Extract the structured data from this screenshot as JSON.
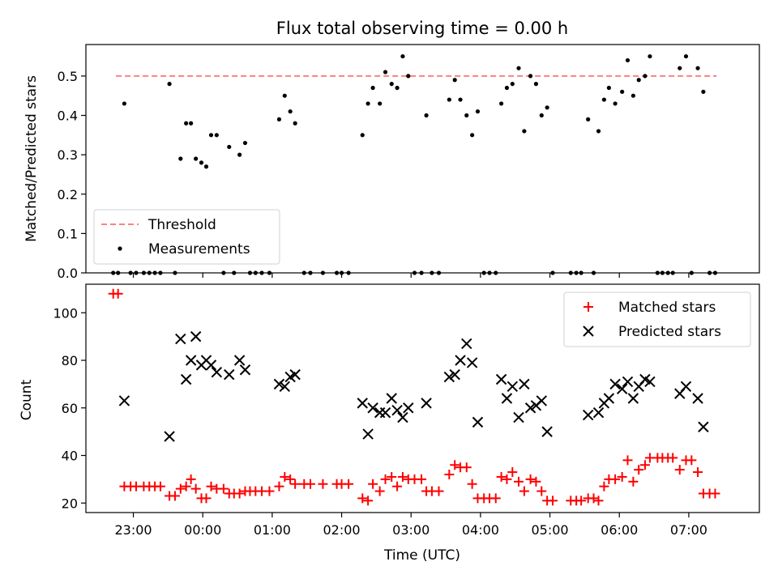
{
  "chart_data": [
    {
      "type": "scatter",
      "title": "Flux total observing time = 0.00 h",
      "xlabel": "",
      "ylabel": "Matched/Predicted stars",
      "xlim": [
        "22:19",
        "08:01"
      ],
      "ylim": [
        0,
        0.58
      ],
      "yticks": [
        0.0,
        0.1,
        0.2,
        0.3,
        0.4,
        0.5
      ],
      "ytick_labels": [
        "0.0",
        "0.1",
        "0.2",
        "0.3",
        "0.4",
        "0.5"
      ],
      "x_unit": "hours after 22:00 UTC",
      "grid": false,
      "legend_position": "lower-left",
      "threshold": {
        "name": "Threshold",
        "value": 0.5,
        "x_start": 0.75,
        "x_end": 9.4,
        "color": "#ff7f7f",
        "style": "dashed"
      },
      "series": [
        {
          "name": "Measurements",
          "color": "#000000",
          "marker": "dot",
          "points": [
            [
              0.71,
              0
            ],
            [
              0.78,
              0
            ],
            [
              0.87,
              0.43
            ],
            [
              0.96,
              0
            ],
            [
              1.04,
              0
            ],
            [
              1.15,
              0
            ],
            [
              1.23,
              0
            ],
            [
              1.31,
              0
            ],
            [
              1.39,
              0
            ],
            [
              1.52,
              0.48
            ],
            [
              1.6,
              0
            ],
            [
              1.68,
              0.29
            ],
            [
              1.76,
              0.38
            ],
            [
              1.83,
              0.38
            ],
            [
              1.9,
              0.29
            ],
            [
              1.98,
              0.28
            ],
            [
              2.05,
              0.27
            ],
            [
              2.12,
              0.35
            ],
            [
              2.2,
              0.35
            ],
            [
              2.3,
              0
            ],
            [
              2.38,
              0.32
            ],
            [
              2.45,
              0
            ],
            [
              2.53,
              0.3
            ],
            [
              2.61,
              0.33
            ],
            [
              2.68,
              0
            ],
            [
              2.76,
              0
            ],
            [
              2.85,
              0
            ],
            [
              2.96,
              0
            ],
            [
              3.1,
              0.39
            ],
            [
              3.18,
              0.45
            ],
            [
              3.26,
              0.41
            ],
            [
              3.33,
              0.38
            ],
            [
              3.46,
              0
            ],
            [
              3.55,
              0
            ],
            [
              3.73,
              0
            ],
            [
              3.93,
              0
            ],
            [
              4.0,
              0
            ],
            [
              4.1,
              0
            ],
            [
              4.3,
              0.35
            ],
            [
              4.38,
              0.43
            ],
            [
              4.45,
              0.47
            ],
            [
              4.55,
              0.43
            ],
            [
              4.63,
              0.51
            ],
            [
              4.72,
              0.48
            ],
            [
              4.8,
              0.47
            ],
            [
              4.88,
              0.55
            ],
            [
              4.96,
              0.5
            ],
            [
              5.05,
              0
            ],
            [
              5.15,
              0
            ],
            [
              5.22,
              0.4
            ],
            [
              5.3,
              0
            ],
            [
              5.4,
              0
            ],
            [
              5.55,
              0.44
            ],
            [
              5.63,
              0.49
            ],
            [
              5.71,
              0.44
            ],
            [
              5.8,
              0.4
            ],
            [
              5.88,
              0.35
            ],
            [
              5.96,
              0.41
            ],
            [
              6.05,
              0
            ],
            [
              6.13,
              0
            ],
            [
              6.22,
              0
            ],
            [
              6.3,
              0.43
            ],
            [
              6.38,
              0.47
            ],
            [
              6.46,
              0.48
            ],
            [
              6.55,
              0.52
            ],
            [
              6.63,
              0.36
            ],
            [
              6.72,
              0.5
            ],
            [
              6.8,
              0.48
            ],
            [
              6.88,
              0.4
            ],
            [
              6.96,
              0.42
            ],
            [
              7.04,
              0
            ],
            [
              7.3,
              0
            ],
            [
              7.38,
              0
            ],
            [
              7.45,
              0
            ],
            [
              7.55,
              0.39
            ],
            [
              7.63,
              0
            ],
            [
              7.7,
              0.36
            ],
            [
              7.78,
              0.44
            ],
            [
              7.85,
              0.47
            ],
            [
              7.94,
              0.43
            ],
            [
              8.04,
              0.46
            ],
            [
              8.12,
              0.54
            ],
            [
              8.2,
              0.45
            ],
            [
              8.28,
              0.49
            ],
            [
              8.37,
              0.5
            ],
            [
              8.44,
              0.55
            ],
            [
              8.55,
              0
            ],
            [
              8.62,
              0
            ],
            [
              8.7,
              0
            ],
            [
              8.77,
              0
            ],
            [
              8.87,
              0.52
            ],
            [
              8.96,
              0.55
            ],
            [
              9.04,
              0
            ],
            [
              9.13,
              0.52
            ],
            [
              9.21,
              0.46
            ],
            [
              9.3,
              0
            ],
            [
              9.38,
              0
            ]
          ]
        }
      ]
    },
    {
      "type": "scatter",
      "title": "",
      "xlabel": "Time (UTC)",
      "ylabel": "Count",
      "xlim": [
        "22:19",
        "08:01"
      ],
      "ylim": [
        16,
        112
      ],
      "yticks": [
        20,
        40,
        60,
        80,
        100
      ],
      "ytick_labels": [
        "20",
        "40",
        "60",
        "80",
        "100"
      ],
      "xticks": [
        1,
        2,
        3,
        4,
        5,
        6,
        7,
        8,
        9
      ],
      "xtick_labels": [
        "23:00",
        "00:00",
        "01:00",
        "02:00",
        "03:00",
        "04:00",
        "05:00",
        "06:00",
        "07:00"
      ],
      "x_unit": "hours after 22:00 UTC",
      "grid": false,
      "legend_position": "upper-right",
      "series": [
        {
          "name": "Matched stars",
          "color": "#ff0000",
          "marker": "plus",
          "points": [
            [
              0.71,
              108
            ],
            [
              0.78,
              108
            ],
            [
              0.87,
              27
            ],
            [
              0.96,
              27
            ],
            [
              1.04,
              27
            ],
            [
              1.15,
              27
            ],
            [
              1.23,
              27
            ],
            [
              1.31,
              27
            ],
            [
              1.39,
              27
            ],
            [
              1.52,
              23
            ],
            [
              1.6,
              23
            ],
            [
              1.68,
              26
            ],
            [
              1.76,
              27
            ],
            [
              1.83,
              30
            ],
            [
              1.9,
              26
            ],
            [
              1.98,
              22
            ],
            [
              2.05,
              22
            ],
            [
              2.12,
              27
            ],
            [
              2.2,
              26
            ],
            [
              2.3,
              26
            ],
            [
              2.38,
              24
            ],
            [
              2.45,
              24
            ],
            [
              2.53,
              24
            ],
            [
              2.61,
              25
            ],
            [
              2.68,
              25
            ],
            [
              2.76,
              25
            ],
            [
              2.85,
              25
            ],
            [
              2.96,
              25
            ],
            [
              3.1,
              27
            ],
            [
              3.18,
              31
            ],
            [
              3.26,
              30
            ],
            [
              3.33,
              28
            ],
            [
              3.46,
              28
            ],
            [
              3.55,
              28
            ],
            [
              3.73,
              28
            ],
            [
              3.93,
              28
            ],
            [
              4.0,
              28
            ],
            [
              4.1,
              28
            ],
            [
              4.3,
              22
            ],
            [
              4.38,
              21
            ],
            [
              4.45,
              28
            ],
            [
              4.55,
              25
            ],
            [
              4.63,
              30
            ],
            [
              4.72,
              31
            ],
            [
              4.8,
              27
            ],
            [
              4.88,
              31
            ],
            [
              4.96,
              30
            ],
            [
              5.05,
              30
            ],
            [
              5.15,
              30
            ],
            [
              5.22,
              25
            ],
            [
              5.3,
              25
            ],
            [
              5.4,
              25
            ],
            [
              5.55,
              32
            ],
            [
              5.63,
              36
            ],
            [
              5.71,
              35
            ],
            [
              5.8,
              35
            ],
            [
              5.88,
              28
            ],
            [
              5.96,
              22
            ],
            [
              6.05,
              22
            ],
            [
              6.13,
              22
            ],
            [
              6.22,
              22
            ],
            [
              6.3,
              31
            ],
            [
              6.38,
              30
            ],
            [
              6.46,
              33
            ],
            [
              6.55,
              29
            ],
            [
              6.63,
              25
            ],
            [
              6.72,
              30
            ],
            [
              6.8,
              29
            ],
            [
              6.88,
              25
            ],
            [
              6.96,
              21
            ],
            [
              7.04,
              21
            ],
            [
              7.3,
              21
            ],
            [
              7.38,
              21
            ],
            [
              7.45,
              21
            ],
            [
              7.55,
              22
            ],
            [
              7.63,
              22
            ],
            [
              7.7,
              21
            ],
            [
              7.78,
              27
            ],
            [
              7.85,
              30
            ],
            [
              7.94,
              30
            ],
            [
              8.04,
              31
            ],
            [
              8.12,
              38
            ],
            [
              8.2,
              29
            ],
            [
              8.28,
              34
            ],
            [
              8.37,
              36
            ],
            [
              8.44,
              39
            ],
            [
              8.55,
              39
            ],
            [
              8.62,
              39
            ],
            [
              8.7,
              39
            ],
            [
              8.77,
              39
            ],
            [
              8.87,
              34
            ],
            [
              8.96,
              38
            ],
            [
              9.04,
              38
            ],
            [
              9.13,
              33
            ],
            [
              9.21,
              24
            ],
            [
              9.3,
              24
            ],
            [
              9.38,
              24
            ]
          ]
        },
        {
          "name": "Predicted stars",
          "color": "#000000",
          "marker": "x",
          "points": [
            [
              0.87,
              63
            ],
            [
              1.52,
              48
            ],
            [
              1.68,
              89
            ],
            [
              1.76,
              72
            ],
            [
              1.83,
              80
            ],
            [
              1.9,
              90
            ],
            [
              1.98,
              78
            ],
            [
              2.05,
              80
            ],
            [
              2.12,
              78
            ],
            [
              2.2,
              75
            ],
            [
              2.38,
              74
            ],
            [
              2.53,
              80
            ],
            [
              2.61,
              76
            ],
            [
              3.1,
              70
            ],
            [
              3.18,
              69
            ],
            [
              3.26,
              73
            ],
            [
              3.33,
              74
            ],
            [
              4.3,
              62
            ],
            [
              4.38,
              49
            ],
            [
              4.45,
              60
            ],
            [
              4.55,
              58
            ],
            [
              4.63,
              58
            ],
            [
              4.72,
              64
            ],
            [
              4.8,
              59
            ],
            [
              4.88,
              56
            ],
            [
              4.96,
              60
            ],
            [
              5.22,
              62
            ],
            [
              5.55,
              73
            ],
            [
              5.63,
              74
            ],
            [
              5.71,
              80
            ],
            [
              5.8,
              87
            ],
            [
              5.88,
              79
            ],
            [
              5.96,
              54
            ],
            [
              6.3,
              72
            ],
            [
              6.38,
              64
            ],
            [
              6.46,
              69
            ],
            [
              6.55,
              56
            ],
            [
              6.63,
              70
            ],
            [
              6.72,
              60
            ],
            [
              6.8,
              61
            ],
            [
              6.88,
              63
            ],
            [
              6.96,
              50
            ],
            [
              7.55,
              57
            ],
            [
              7.7,
              58
            ],
            [
              7.78,
              62
            ],
            [
              7.85,
              64
            ],
            [
              7.94,
              70
            ],
            [
              8.04,
              68
            ],
            [
              8.12,
              71
            ],
            [
              8.2,
              64
            ],
            [
              8.28,
              69
            ],
            [
              8.37,
              72
            ],
            [
              8.44,
              71
            ],
            [
              8.87,
              66
            ],
            [
              8.96,
              69
            ],
            [
              9.13,
              64
            ],
            [
              9.21,
              52
            ]
          ]
        }
      ]
    }
  ]
}
